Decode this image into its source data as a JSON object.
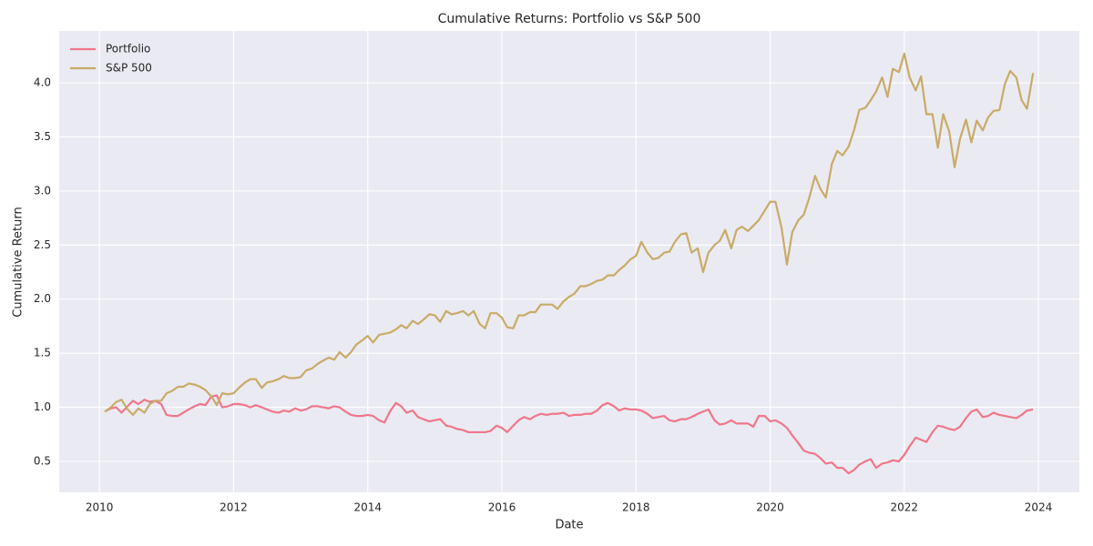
{
  "chart_data": {
    "type": "line",
    "title": "Cumulative Returns: Portfolio vs S&P 500",
    "xlabel": "Date",
    "ylabel": "Cumulative Return",
    "x": [
      2010.08,
      2010.17,
      2010.25,
      2010.33,
      2010.42,
      2010.5,
      2010.58,
      2010.67,
      2010.75,
      2010.83,
      2010.92,
      2011,
      2011.08,
      2011.17,
      2011.25,
      2011.33,
      2011.42,
      2011.5,
      2011.58,
      2011.67,
      2011.75,
      2011.83,
      2011.92,
      2012,
      2012.08,
      2012.17,
      2012.25,
      2012.33,
      2012.42,
      2012.5,
      2012.58,
      2012.67,
      2012.75,
      2012.83,
      2012.92,
      2013,
      2013.08,
      2013.17,
      2013.25,
      2013.33,
      2013.42,
      2013.5,
      2013.58,
      2013.67,
      2013.75,
      2013.83,
      2013.92,
      2014,
      2014.08,
      2014.17,
      2014.25,
      2014.33,
      2014.42,
      2014.5,
      2014.58,
      2014.67,
      2014.75,
      2014.83,
      2014.92,
      2015,
      2015.08,
      2015.17,
      2015.25,
      2015.33,
      2015.42,
      2015.5,
      2015.58,
      2015.67,
      2015.75,
      2015.83,
      2015.92,
      2016,
      2016.08,
      2016.17,
      2016.25,
      2016.33,
      2016.42,
      2016.5,
      2016.58,
      2016.67,
      2016.75,
      2016.83,
      2016.92,
      2017,
      2017.08,
      2017.17,
      2017.25,
      2017.33,
      2017.42,
      2017.5,
      2017.58,
      2017.67,
      2017.75,
      2017.83,
      2017.92,
      2018,
      2018.08,
      2018.17,
      2018.25,
      2018.33,
      2018.42,
      2018.5,
      2018.58,
      2018.67,
      2018.75,
      2018.83,
      2018.92,
      2019,
      2019.08,
      2019.17,
      2019.25,
      2019.33,
      2019.42,
      2019.5,
      2019.58,
      2019.67,
      2019.75,
      2019.83,
      2019.92,
      2020,
      2020.08,
      2020.17,
      2020.25,
      2020.33,
      2020.42,
      2020.5,
      2020.58,
      2020.67,
      2020.75,
      2020.83,
      2020.92,
      2021,
      2021.08,
      2021.17,
      2021.25,
      2021.33,
      2021.42,
      2021.5,
      2021.58,
      2021.67,
      2021.75,
      2021.83,
      2021.92,
      2022,
      2022.08,
      2022.17,
      2022.25,
      2022.33,
      2022.42,
      2022.5,
      2022.58,
      2022.67,
      2022.75,
      2022.83,
      2022.92,
      2023,
      2023.08,
      2023.17,
      2023.25,
      2023.33,
      2023.42,
      2023.5,
      2023.58,
      2023.67,
      2023.75,
      2023.83,
      2023.92
    ],
    "series": [
      {
        "name": "Portfolio",
        "color": "#f0768a",
        "values": [
          0.96,
          0.99,
          1.0,
          0.95,
          1.01,
          1.06,
          1.03,
          1.07,
          1.05,
          1.06,
          1.03,
          0.93,
          0.92,
          0.92,
          0.95,
          0.98,
          1.01,
          1.03,
          1.02,
          1.1,
          1.11,
          1.0,
          1.01,
          1.03,
          1.03,
          1.02,
          1.0,
          1.02,
          1.0,
          0.98,
          0.96,
          0.95,
          0.97,
          0.96,
          0.99,
          0.97,
          0.98,
          1.01,
          1.01,
          1.0,
          0.99,
          1.01,
          1.0,
          0.96,
          0.93,
          0.92,
          0.92,
          0.93,
          0.92,
          0.88,
          0.86,
          0.96,
          1.04,
          1.01,
          0.95,
          0.97,
          0.91,
          0.89,
          0.87,
          0.88,
          0.89,
          0.83,
          0.82,
          0.8,
          0.79,
          0.77,
          0.77,
          0.77,
          0.77,
          0.78,
          0.83,
          0.81,
          0.77,
          0.83,
          0.88,
          0.91,
          0.89,
          0.92,
          0.94,
          0.93,
          0.94,
          0.94,
          0.95,
          0.92,
          0.93,
          0.93,
          0.94,
          0.94,
          0.97,
          1.02,
          1.04,
          1.01,
          0.97,
          0.99,
          0.98,
          0.98,
          0.97,
          0.94,
          0.9,
          0.91,
          0.92,
          0.88,
          0.87,
          0.89,
          0.89,
          0.91,
          0.94,
          0.96,
          0.98,
          0.88,
          0.84,
          0.85,
          0.88,
          0.85,
          0.85,
          0.85,
          0.82,
          0.92,
          0.92,
          0.87,
          0.88,
          0.85,
          0.81,
          0.74,
          0.67,
          0.6,
          0.58,
          0.57,
          0.53,
          0.48,
          0.49,
          0.44,
          0.44,
          0.39,
          0.42,
          0.47,
          0.5,
          0.52,
          0.44,
          0.48,
          0.49,
          0.51,
          0.5,
          0.56,
          0.64,
          0.72,
          0.7,
          0.68,
          0.77,
          0.83,
          0.82,
          0.8,
          0.79,
          0.82,
          0.9,
          0.96,
          0.98,
          0.91,
          0.92,
          0.95,
          0.93,
          0.92,
          0.91,
          0.9,
          0.93,
          0.97,
          0.98
        ]
      },
      {
        "name": "S&P 500",
        "color": "#c8ab67",
        "values": [
          0.96,
          1.0,
          1.05,
          1.07,
          0.98,
          0.93,
          0.99,
          0.95,
          1.03,
          1.06,
          1.06,
          1.13,
          1.15,
          1.19,
          1.19,
          1.22,
          1.21,
          1.19,
          1.16,
          1.1,
          1.02,
          1.13,
          1.12,
          1.13,
          1.18,
          1.23,
          1.26,
          1.26,
          1.18,
          1.23,
          1.24,
          1.26,
          1.29,
          1.27,
          1.27,
          1.28,
          1.34,
          1.36,
          1.4,
          1.43,
          1.46,
          1.44,
          1.51,
          1.46,
          1.51,
          1.58,
          1.62,
          1.66,
          1.6,
          1.67,
          1.68,
          1.69,
          1.72,
          1.76,
          1.73,
          1.8,
          1.77,
          1.81,
          1.86,
          1.85,
          1.79,
          1.89,
          1.86,
          1.87,
          1.89,
          1.85,
          1.89,
          1.77,
          1.73,
          1.87,
          1.87,
          1.83,
          1.74,
          1.73,
          1.85,
          1.85,
          1.88,
          1.88,
          1.95,
          1.95,
          1.95,
          1.91,
          1.98,
          2.02,
          2.05,
          2.12,
          2.12,
          2.14,
          2.17,
          2.18,
          2.22,
          2.22,
          2.27,
          2.31,
          2.37,
          2.4,
          2.53,
          2.43,
          2.37,
          2.38,
          2.43,
          2.44,
          2.53,
          2.6,
          2.61,
          2.43,
          2.47,
          2.25,
          2.43,
          2.5,
          2.54,
          2.64,
          2.47,
          2.64,
          2.67,
          2.63,
          2.68,
          2.73,
          2.82,
          2.9,
          2.9,
          2.66,
          2.32,
          2.62,
          2.73,
          2.78,
          2.93,
          3.14,
          3.02,
          2.94,
          3.25,
          3.37,
          3.33,
          3.41,
          3.56,
          3.75,
          3.77,
          3.84,
          3.92,
          4.05,
          3.87,
          4.13,
          4.1,
          4.27,
          4.05,
          3.93,
          4.06,
          3.71,
          3.71,
          3.4,
          3.71,
          3.55,
          3.22,
          3.48,
          3.66,
          3.45,
          3.65,
          3.56,
          3.68,
          3.74,
          3.75,
          3.99,
          4.11,
          4.05,
          3.84,
          3.76,
          4.09
        ]
      }
    ],
    "xlim": [
      2009.4,
      2024.61
    ],
    "xticks": [
      2010,
      2012,
      2014,
      2016,
      2018,
      2020,
      2022,
      2024
    ],
    "ylim": [
      0.214,
      4.48
    ],
    "yticks": [
      0.5,
      {
        "value": 1,
        "label": "1.0"
      },
      1.5,
      {
        "value": 2,
        "label": "2.0"
      },
      2.5,
      {
        "value": 3,
        "label": "3.0"
      },
      3.5,
      {
        "value": 4,
        "label": "4.0"
      }
    ],
    "grid": true,
    "legend": "upper left"
  }
}
